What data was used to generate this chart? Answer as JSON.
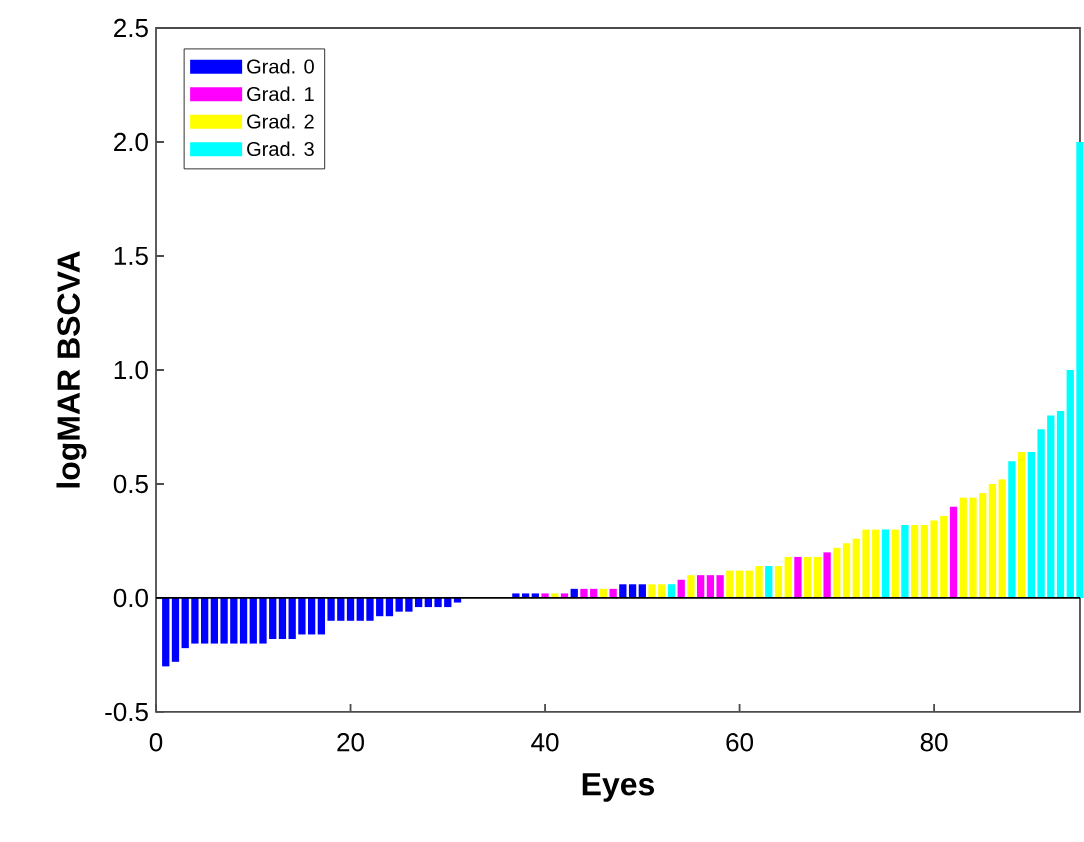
{
  "chart_data": {
    "type": "bar",
    "xlabel": "Eyes",
    "ylabel": "logMAR BSCVA",
    "xlim": [
      0,
      95
    ],
    "ylim": [
      -0.5,
      2.5
    ],
    "xticks": [
      0,
      20,
      40,
      60,
      80
    ],
    "yticks": [
      {
        "value": -0.5,
        "label": "-0.5"
      },
      {
        "value": 0,
        "label": "0.0"
      },
      {
        "value": 0.5,
        "label": "0.5"
      },
      {
        "value": 1,
        "label": "1.0"
      },
      {
        "value": 1.5,
        "label": "1.5"
      },
      {
        "value": 2,
        "label": "2.0"
      },
      {
        "value": 2.5,
        "label": "2.5"
      }
    ],
    "grid": false,
    "legend": "top left",
    "ref_lines": [
      {
        "axis": "y",
        "value": 0,
        "color": "#000000"
      }
    ],
    "series": [
      {
        "name": "Grad. 0",
        "color": "#0000ff",
        "x": [
          1,
          2,
          3,
          4,
          5,
          6,
          7,
          8,
          9,
          10,
          11,
          12,
          13,
          14,
          15,
          16,
          17,
          18,
          19,
          20,
          21,
          22,
          23,
          24,
          25,
          26,
          27,
          28,
          29,
          30,
          31,
          37,
          38,
          39,
          43,
          48,
          49,
          50
        ],
        "values": [
          -0.3,
          -0.28,
          -0.22,
          -0.2,
          -0.2,
          -0.2,
          -0.2,
          -0.2,
          -0.2,
          -0.2,
          -0.2,
          -0.18,
          -0.18,
          -0.18,
          -0.16,
          -0.16,
          -0.16,
          -0.1,
          -0.1,
          -0.1,
          -0.1,
          -0.1,
          -0.08,
          -0.08,
          -0.06,
          -0.06,
          -0.04,
          -0.04,
          -0.04,
          -0.04,
          -0.02,
          0.02,
          0.02,
          0.02,
          0.04,
          0.06,
          0.06,
          0.06
        ]
      },
      {
        "name": "Grad. 1",
        "color": "#ff00ff",
        "x": [
          40,
          42,
          44,
          45,
          47,
          54,
          56,
          57,
          58,
          66,
          69,
          82
        ],
        "values": [
          0.02,
          0.02,
          0.04,
          0.04,
          0.04,
          0.08,
          0.1,
          0.1,
          0.1,
          0.18,
          0.2,
          0.4
        ]
      },
      {
        "name": "Grad. 2",
        "color": "#ffff00",
        "x": [
          41,
          46,
          51,
          52,
          55,
          59,
          60,
          61,
          62,
          64,
          65,
          67,
          68,
          70,
          71,
          72,
          73,
          74,
          76,
          78,
          79,
          80,
          81,
          83,
          84,
          85,
          86,
          87,
          89
        ],
        "values": [
          0.02,
          0.04,
          0.06,
          0.06,
          0.1,
          0.12,
          0.12,
          0.12,
          0.14,
          0.14,
          0.18,
          0.18,
          0.18,
          0.22,
          0.24,
          0.26,
          0.3,
          0.3,
          0.3,
          0.32,
          0.32,
          0.34,
          0.36,
          0.44,
          0.44,
          0.46,
          0.5,
          0.52,
          0.64
        ]
      },
      {
        "name": "Grad. 3",
        "color": "#00ffff",
        "x": [
          53,
          63,
          75,
          77,
          88,
          90,
          91,
          92,
          93,
          94,
          95
        ],
        "values": [
          0.06,
          0.14,
          0.3,
          0.32,
          0.6,
          0.64,
          0.74,
          0.8,
          0.82,
          1.0,
          2.0
        ]
      }
    ]
  }
}
